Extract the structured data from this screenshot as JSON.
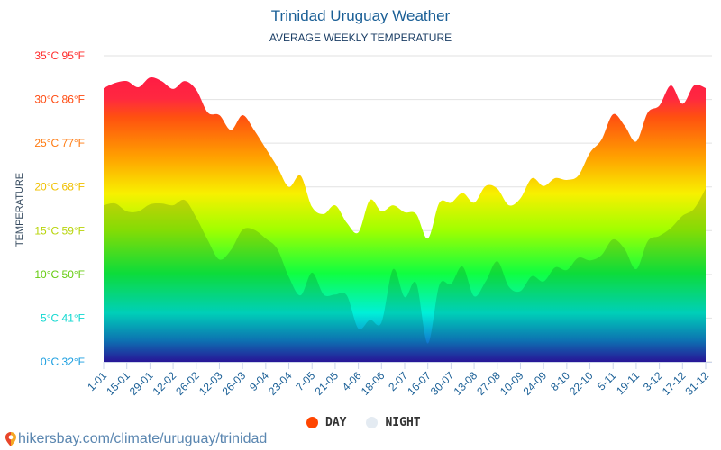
{
  "chart_data": {
    "type": "area",
    "title": "Trinidad Uruguay Weather",
    "subtitle": "AVERAGE WEEKLY TEMPERATURE",
    "ylabel": "TEMPERATURE",
    "xlabel": "",
    "ylim": [
      0,
      35
    ],
    "grid": true,
    "legend_placement": "bottom-center",
    "y_ticks": [
      {
        "value": 0,
        "label": "0°C 32°F",
        "color": "#1a9ee0"
      },
      {
        "value": 5,
        "label": "5°C 41°F",
        "color": "#10d8d0"
      },
      {
        "value": 10,
        "label": "10°C 50°F",
        "color": "#66cc11"
      },
      {
        "value": 15,
        "label": "15°C 59°F",
        "color": "#b8d40a"
      },
      {
        "value": 20,
        "label": "20°C 68°F",
        "color": "#f0c000"
      },
      {
        "value": 25,
        "label": "25°C 77°F",
        "color": "#ff7a10"
      },
      {
        "value": 30,
        "label": "30°C 86°F",
        "color": "#ff4a10"
      },
      {
        "value": 35,
        "label": "35°C 95°F",
        "color": "#ff2a2a"
      }
    ],
    "x_tick_labels": [
      "1-01",
      "15-01",
      "29-01",
      "12-02",
      "26-02",
      "12-03",
      "26-03",
      "9-04",
      "23-04",
      "7-05",
      "21-05",
      "4-06",
      "18-06",
      "2-07",
      "16-07",
      "30-07",
      "13-08",
      "27-08",
      "10-09",
      "24-09",
      "8-10",
      "22-10",
      "5-11",
      "19-11",
      "3-12",
      "17-12",
      "31-12"
    ],
    "series": [
      {
        "name": "DAY",
        "color": "#ff4500",
        "values": [
          31.3,
          31.9,
          32.1,
          31.4,
          32.5,
          32.1,
          31.2,
          32.1,
          31.1,
          28.5,
          28.2,
          26.5,
          28.2,
          26.5,
          24.4,
          22.3,
          20.0,
          21.3,
          17.7,
          16.9,
          17.9,
          15.9,
          14.8,
          18.5,
          17.2,
          17.9,
          17.1,
          16.9,
          14.1,
          18.2,
          18.2,
          19.3,
          18.2,
          20.1,
          19.8,
          17.9,
          18.7,
          21.0,
          20.1,
          21.0,
          20.8,
          21.3,
          23.9,
          25.4,
          28.3,
          27.0,
          25.2,
          28.5,
          29.3,
          31.6,
          29.5,
          31.6,
          31.3
        ]
      },
      {
        "name": "NIGHT",
        "color": "#e4ebf2",
        "values": [
          17.9,
          18.1,
          17.2,
          17.2,
          18.0,
          18.1,
          17.9,
          18.5,
          16.5,
          13.9,
          11.7,
          12.8,
          15.1,
          15.1,
          14.1,
          12.9,
          9.7,
          7.6,
          10.2,
          7.7,
          7.7,
          7.6,
          3.8,
          4.8,
          4.5,
          10.6,
          7.4,
          9.0,
          2.1,
          8.8,
          8.9,
          10.9,
          7.5,
          9.2,
          11.5,
          8.6,
          8.1,
          9.8,
          9.2,
          10.8,
          10.5,
          11.9,
          11.6,
          12.2,
          14.0,
          12.9,
          10.6,
          13.8,
          14.4,
          15.3,
          16.7,
          17.5,
          19.8
        ]
      }
    ]
  },
  "footer": {
    "url": "hikersbay.com/climate/uruguay/trinidad",
    "icon": "map-pin-icon"
  }
}
